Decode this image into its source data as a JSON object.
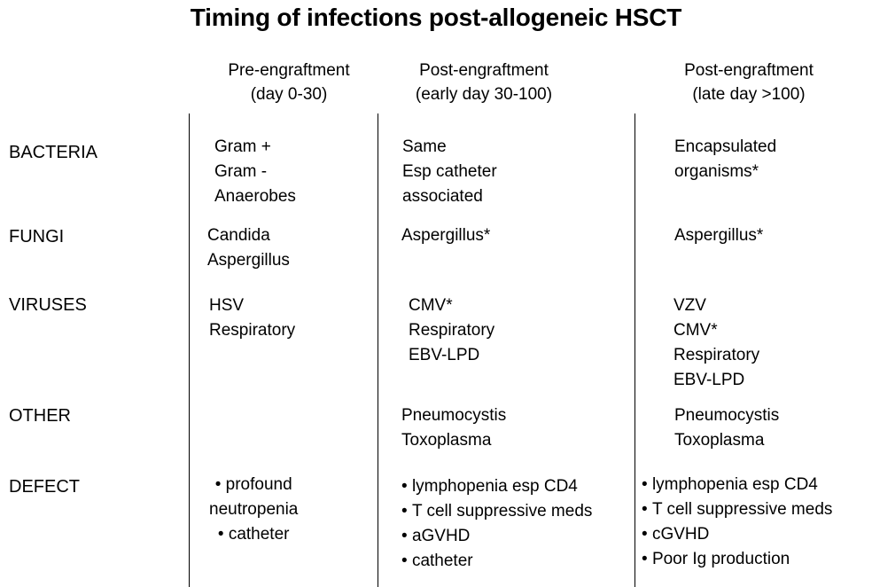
{
  "title": "Timing of infections post-allogeneic HSCT",
  "columns": [
    {
      "line1": "Pre-engraftment",
      "line2": "(day 0-30)"
    },
    {
      "line1": "Post-engraftment",
      "line2": "(early day 30-100)"
    },
    {
      "line1": "Post-engraftment",
      "line2": "(late day >100)"
    }
  ],
  "rows": {
    "bacteria": {
      "label": "BACTERIA",
      "pre": [
        "Gram +",
        "Gram -",
        "Anaerobes"
      ],
      "early": [
        "Same",
        "Esp catheter",
        "associated"
      ],
      "late": [
        "Encapsulated",
        "organisms*"
      ]
    },
    "fungi": {
      "label": "FUNGI",
      "pre": [
        "Candida",
        "Aspergillus"
      ],
      "early": [
        "Aspergillus*"
      ],
      "late": [
        "Aspergillus*"
      ]
    },
    "viruses": {
      "label": "VIRUSES",
      "pre": [
        "HSV",
        "Respiratory"
      ],
      "early": [
        "CMV*",
        "Respiratory",
        "EBV-LPD"
      ],
      "late": [
        "VZV",
        "CMV*",
        "Respiratory",
        "EBV-LPD"
      ]
    },
    "other": {
      "label": "OTHER",
      "early": [
        "Pneumocystis",
        "Toxoplasma"
      ],
      "late": [
        "Pneumocystis",
        "Toxoplasma"
      ]
    },
    "defect": {
      "label": "DEFECT",
      "pre": [
        "profound",
        "neutropenia",
        "catheter"
      ],
      "early": [
        "lymphopenia esp CD4",
        "T cell suppressive meds",
        "aGVHD",
        "catheter"
      ],
      "late": [
        "lymphopenia esp CD4",
        "T cell suppressive meds",
        "cGVHD",
        "Poor Ig production"
      ]
    }
  }
}
